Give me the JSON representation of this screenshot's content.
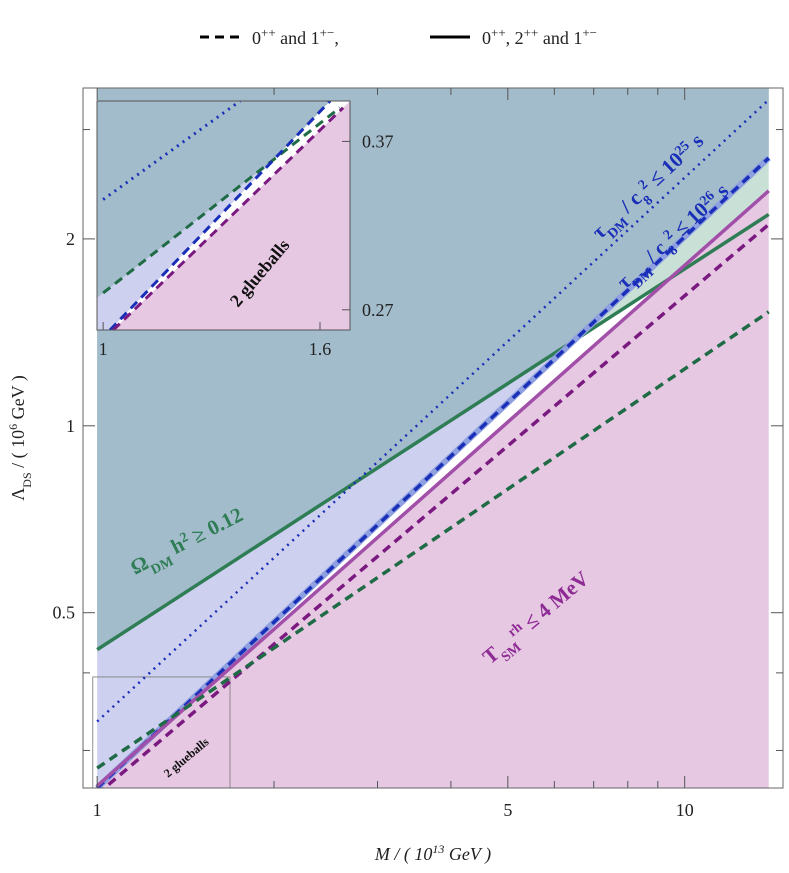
{
  "legend": [
    {
      "dash": "dashed",
      "parts": [
        {
          "text": "0"
        },
        {
          "text": "++",
          "shift": "super"
        },
        {
          "text": " and 1"
        },
        {
          "text": "+−",
          "shift": "super"
        },
        {
          "text": ","
        }
      ]
    },
    {
      "dash": "solid",
      "parts": [
        {
          "text": "0"
        },
        {
          "text": "++",
          "shift": "super"
        },
        {
          "text": ", 2"
        },
        {
          "text": "++",
          "shift": "super"
        },
        {
          "text": " and 1"
        },
        {
          "text": "+−",
          "shift": "super"
        }
      ]
    }
  ],
  "chart_data": [
    {
      "type": "line",
      "log_x": true,
      "log_y": true,
      "x_label": [
        {
          "text": "M / ( 10"
        },
        {
          "text": "13",
          "shift": "super"
        },
        {
          "text": " GeV )"
        }
      ],
      "y_label": [
        {
          "text": "Λ"
        },
        {
          "text": "DS",
          "shift": "sub"
        },
        {
          "text": " / ( 10"
        },
        {
          "text": "6",
          "shift": "super"
        },
        {
          "text": " GeV )"
        }
      ],
      "xlim": [
        0.946,
        14.7
      ],
      "ylim": [
        0.261,
        3.5
      ],
      "xticks": [
        1,
        5,
        10
      ],
      "xminor": [
        2,
        3,
        4,
        6,
        7,
        8,
        9
      ],
      "yticks": [
        0.5,
        1,
        2
      ],
      "yminor": [
        0.3,
        0.4,
        3
      ],
      "series": [
        {
          "color": "#2e7d55",
          "dash": "solid",
          "x": [
            1,
            13.9
          ],
          "values": [
            0.436,
            2.19
          ]
        },
        {
          "color": "#1a2fb8",
          "dash": "dotted",
          "x": [
            1,
            13.9
          ],
          "values": [
            0.334,
            3.35
          ]
        },
        {
          "color": "#1a2fb8",
          "dash": "dashed",
          "x": [
            1,
            13.9
          ],
          "values": [
            0.261,
            2.7
          ]
        },
        {
          "color": "#a14fa8",
          "dash": "solid",
          "x": [
            1,
            13.9
          ],
          "values": [
            0.263,
            2.39
          ]
        },
        {
          "color": "#7a1a80",
          "dash": "dashed",
          "x": [
            1,
            13.9
          ],
          "values": [
            0.255,
            2.11
          ]
        },
        {
          "color": "#1e6b45",
          "dash": "dashed",
          "x": [
            1,
            13.9
          ],
          "values": [
            0.281,
            1.526
          ]
        }
      ],
      "annotations": [
        {
          "color": "#2e7d55",
          "parts": [
            {
              "text": "Ω"
            },
            {
              "text": "DM",
              "shift": "sub"
            },
            {
              "text": " h"
            },
            {
              "text": "2",
              "shift": "super"
            },
            {
              "text": " ≥ 0.12"
            }
          ]
        },
        {
          "color": "#1a2fb8",
          "parts": [
            {
              "text": "τ"
            },
            {
              "text": "DM",
              "shift": "sub"
            },
            {
              "text": " / c"
            },
            {
              "text": "8",
              "shift": "sub"
            },
            {
              "text": "2",
              "shift": "super"
            },
            {
              "text": " ≤ 10"
            },
            {
              "text": "25",
              "shift": "super"
            },
            {
              "text": " s"
            }
          ]
        },
        {
          "color": "#1a2fb8",
          "parts": [
            {
              "text": "τ"
            },
            {
              "text": "DM",
              "shift": "sub"
            },
            {
              "text": " / c"
            },
            {
              "text": "8",
              "shift": "sub"
            },
            {
              "text": "2",
              "shift": "super"
            },
            {
              "text": " ≤ 10"
            },
            {
              "text": "26",
              "shift": "super"
            },
            {
              "text": " s"
            }
          ]
        },
        {
          "color": "#8e2a94",
          "parts": [
            {
              "text": "T"
            },
            {
              "text": "SM",
              "shift": "sub"
            },
            {
              "text": "rh",
              "shift": "super"
            },
            {
              "text": " ≤ 4 MeV"
            }
          ]
        },
        {
          "color": "#111111",
          "parts": [
            {
              "text": "2 glueballs"
            }
          ]
        }
      ]
    },
    {
      "type": "line",
      "xlim": [
        0.983,
        1.683
      ],
      "ylim": [
        0.258,
        0.394
      ],
      "xticks": [
        1,
        1.6
      ],
      "yticks": [
        0.27,
        0.37
      ],
      "series": [
        {
          "color": "#1a2fb8",
          "dash": "dotted",
          "x": [
            1,
            1.379
          ],
          "values": [
            0.3355,
            0.394
          ]
        },
        {
          "color": "#1e6b45",
          "dash": "dashed",
          "x": [
            1,
            1.655
          ],
          "values": [
            0.28,
            0.39
          ]
        },
        {
          "color": "#1a2fb8",
          "dash": "dashed",
          "x": [
            1.019,
            1.628
          ],
          "values": [
            0.258,
            0.394
          ]
        },
        {
          "color": "#7a1a80",
          "dash": "dashed",
          "x": [
            1.028,
            1.664
          ],
          "values": [
            0.258,
            0.39
          ]
        }
      ],
      "annotations": [
        {
          "color": "#111111",
          "parts": [
            {
              "text": "2 glueballs"
            }
          ]
        }
      ]
    }
  ]
}
